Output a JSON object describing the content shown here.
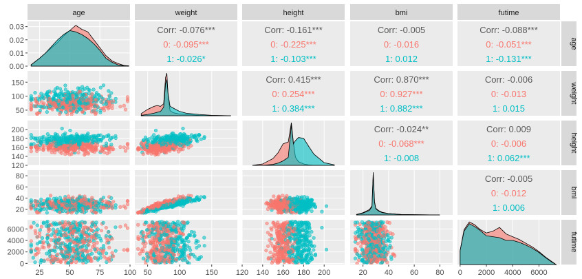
{
  "chart_data": {
    "type": "scatter-matrix",
    "variables": [
      "age",
      "weight",
      "height",
      "bmi",
      "futime"
    ],
    "groups": [
      {
        "name": "0",
        "color": "#F8766D"
      },
      {
        "name": "1",
        "color": "#00BFC4"
      }
    ],
    "corr_label": "Corr:",
    "axes": {
      "age": {
        "range": [
          15,
          100
        ],
        "ticks": [
          25,
          50,
          75,
          100
        ],
        "yrange": [
          0,
          0.034
        ],
        "yticks": [
          "0.00",
          "0.01",
          "0.02",
          "0.03"
        ]
      },
      "weight": {
        "range": [
          30,
          190
        ],
        "ticks": [
          50,
          100,
          150
        ],
        "yticks": [
          50,
          100,
          150
        ]
      },
      "height": {
        "range": [
          120,
          220
        ],
        "ticks": [
          120,
          140,
          160,
          180,
          200
        ],
        "xticks": [
          120,
          140,
          160,
          180,
          200
        ],
        "yticks": [
          120,
          140,
          160,
          180,
          200
        ]
      },
      "bmi": {
        "range": [
          10,
          90
        ],
        "ticks": [
          20,
          40,
          60,
          80
        ],
        "yticks": [
          20,
          40,
          60,
          80
        ]
      },
      "futime": {
        "range": [
          -200,
          7600
        ],
        "ticks": [
          0,
          2000,
          4000,
          6000
        ],
        "yticks": [
          0,
          2000,
          4000,
          6000
        ]
      }
    },
    "correlations": [
      {
        "row": "age",
        "col": "weight",
        "overall": "-0.076***",
        "g0": "-0.095***",
        "g1": "-0.026*"
      },
      {
        "row": "age",
        "col": "height",
        "overall": "-0.161***",
        "g0": "-0.225***",
        "g1": "-0.103***"
      },
      {
        "row": "age",
        "col": "bmi",
        "overall": "-0.005",
        "g0": "-0.016",
        "g1": "0.012"
      },
      {
        "row": "age",
        "col": "futime",
        "overall": "-0.088***",
        "g0": "-0.051***",
        "g1": "-0.131***"
      },
      {
        "row": "weight",
        "col": "height",
        "overall": "0.415***",
        "g0": "0.254***",
        "g1": "0.384***"
      },
      {
        "row": "weight",
        "col": "bmi",
        "overall": "0.870***",
        "g0": "0.927***",
        "g1": "0.882***"
      },
      {
        "row": "weight",
        "col": "futime",
        "overall": "-0.006",
        "g0": "-0.013",
        "g1": "0.015"
      },
      {
        "row": "height",
        "col": "bmi",
        "overall": "-0.024**",
        "g0": "-0.068***",
        "g1": "-0.008"
      },
      {
        "row": "height",
        "col": "futime",
        "overall": "0.009",
        "g0": "-0.006",
        "g1": "0.062***"
      },
      {
        "row": "bmi",
        "col": "futime",
        "overall": "-0.005",
        "g0": "-0.012",
        "g1": "0.006"
      }
    ],
    "densities": {
      "age": {
        "x": [
          18,
          25,
          30,
          35,
          40,
          45,
          50,
          55,
          60,
          65,
          70,
          75,
          80,
          85,
          90,
          95,
          99
        ],
        "g0": [
          0.001,
          0.006,
          0.01,
          0.014,
          0.018,
          0.023,
          0.027,
          0.031,
          0.028,
          0.026,
          0.02,
          0.014,
          0.008,
          0.004,
          0.002,
          0.0005,
          0.0002
        ],
        "g1": [
          0.001,
          0.006,
          0.01,
          0.015,
          0.02,
          0.024,
          0.027,
          0.026,
          0.024,
          0.021,
          0.017,
          0.012,
          0.006,
          0.003,
          0.001,
          0.0003,
          0.0001
        ]
      },
      "weight": {
        "x": [
          40,
          50,
          60,
          65,
          70,
          75,
          78,
          80,
          82,
          85,
          90,
          100,
          110,
          130,
          150,
          180
        ],
        "g0": [
          0.05,
          0.15,
          0.22,
          0.24,
          0.22,
          0.28,
          0.9,
          1.0,
          0.45,
          0.12,
          0.07,
          0.04,
          0.03,
          0.01,
          0.005,
          0.0
        ],
        "g1": [
          0.01,
          0.03,
          0.06,
          0.08,
          0.1,
          0.2,
          0.75,
          0.85,
          0.5,
          0.22,
          0.18,
          0.1,
          0.06,
          0.03,
          0.01,
          0.0
        ]
      },
      "height": {
        "x": [
          130,
          140,
          150,
          155,
          160,
          165,
          168,
          170,
          172,
          175,
          180,
          185,
          190,
          200,
          210
        ],
        "g0": [
          0.0,
          0.03,
          0.15,
          0.28,
          0.48,
          0.52,
          0.95,
          0.5,
          0.18,
          0.08,
          0.03,
          0.01,
          0.0,
          0.0,
          0.0
        ],
        "g1": [
          0.0,
          0.0,
          0.02,
          0.05,
          0.1,
          0.18,
          0.9,
          0.48,
          0.55,
          0.62,
          0.6,
          0.42,
          0.25,
          0.06,
          0.01
        ]
      },
      "bmi": {
        "x": [
          15,
          20,
          25,
          27,
          28,
          29,
          30,
          32,
          35,
          40,
          50,
          60,
          80
        ],
        "g0": [
          0.01,
          0.05,
          0.12,
          0.2,
          0.95,
          0.3,
          0.15,
          0.1,
          0.06,
          0.03,
          0.01,
          0.005,
          0.0
        ],
        "g1": [
          0.01,
          0.04,
          0.1,
          0.18,
          0.9,
          0.28,
          0.14,
          0.09,
          0.05,
          0.03,
          0.01,
          0.005,
          0.0
        ]
      },
      "futime": {
        "x": [
          0,
          300,
          700,
          1100,
          1500,
          2000,
          2500,
          3000,
          3500,
          4000,
          4500,
          5000,
          5500,
          6000,
          6500,
          7000,
          7300
        ],
        "g0": [
          0.3,
          0.75,
          0.92,
          0.86,
          0.76,
          0.68,
          0.72,
          0.8,
          0.66,
          0.6,
          0.54,
          0.46,
          0.38,
          0.28,
          0.16,
          0.06,
          0.0
        ],
        "g1": [
          0.3,
          0.72,
          0.88,
          0.82,
          0.74,
          0.62,
          0.6,
          0.58,
          0.52,
          0.52,
          0.48,
          0.42,
          0.35,
          0.26,
          0.15,
          0.05,
          0.0
        ]
      }
    }
  }
}
